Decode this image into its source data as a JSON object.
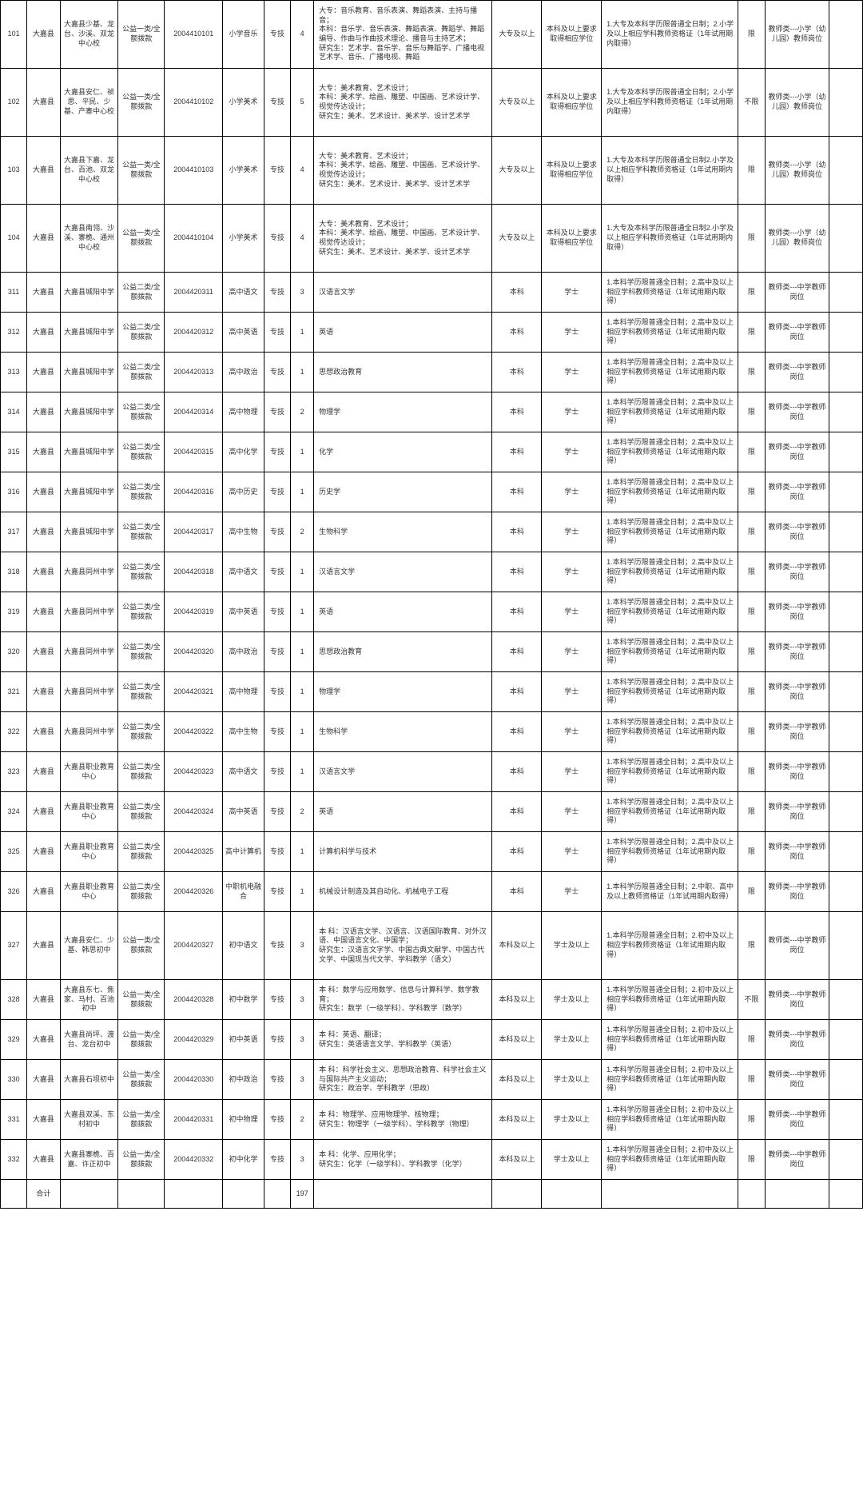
{
  "footer_label": "合计",
  "footer_total": "197",
  "rows": [
    {
      "h": "tall",
      "no": "101",
      "region": "大嘉县",
      "unit": "大嘉县少基、龙台、沙溪、双龙中心校",
      "type": "公益一类/全额拨款",
      "code": "2004410101",
      "post": "小学音乐",
      "ptype": "专技",
      "n": "4",
      "major": "大专：音乐教育、音乐表演、舞蹈表演、主持与播音；\n本科：音乐学、音乐表演、舞蹈表演、舞蹈学、舞蹈编导、作曲与作曲技术理论、播音与主持艺术；\n研究生：艺术学、音乐学、音乐与舞蹈学、广播电视艺术学、音乐、广播电视、舞蹈",
      "edu": "大专及以上",
      "deg": "本科及以上要求取得相应学位",
      "cond": "1.大专及本科学历限普通全日制；2.小学及以上相应学科教师资格证（1年试用期内取得）",
      "sex": "限",
      "cat": "教师类---小学（幼儿园）教师岗位",
      "note": ""
    },
    {
      "h": "tall",
      "no": "102",
      "region": "大嘉县",
      "unit": "大嘉县安仁、祯思、平民、少基、产寨中心校",
      "type": "公益一类/全额拨款",
      "code": "2004410102",
      "post": "小学美术",
      "ptype": "专技",
      "n": "5",
      "major": "大专：美术教育、艺术设计；\n本科：美术学、绘画、雕塑、中国画、艺术设计学、视觉传达设计；\n研究生：美术、艺术设计、美术学、设计艺术学",
      "edu": "大专及以上",
      "deg": "本科及以上要求取得相应学位",
      "cond": "1.大专及本科学历限普通全日制；2.小学及以上相应学科教师资格证（1年试用期内取得）",
      "sex": "不限",
      "cat": "教师类---小学（幼儿园）教师岗位",
      "note": ""
    },
    {
      "h": "tall",
      "no": "103",
      "region": "大嘉县",
      "unit": "大嘉县下嘉、龙台、百池、双龙中心校",
      "type": "公益一类/全额拨款",
      "code": "2004410103",
      "post": "小学美术",
      "ptype": "专技",
      "n": "4",
      "major": "大专：美术教育、艺术设计；\n本科：美术学、绘画、雕塑、中国画、艺术设计学、视觉传达设计；\n研究生：美术、艺术设计、美术学、设计艺术学",
      "edu": "大专及以上",
      "deg": "本科及以上要求取得相应学位",
      "cond": "1.大专及本科学历限普通全日制2.小学及以上相应学科教师资格证（1年试用期内取得）",
      "sex": "限",
      "cat": "教师类---小学（幼儿园）教师岗位",
      "note": ""
    },
    {
      "h": "tall",
      "no": "104",
      "region": "大嘉县",
      "unit": "大嘉县南翎、沙溪、寨桅、通州中心校",
      "type": "公益一类/全额拨款",
      "code": "2004410104",
      "post": "小学美术",
      "ptype": "专技",
      "n": "4",
      "major": "大专：美术教育、艺术设计；\n本科：美术学、绘画、雕塑、中国画、艺术设计学、视觉传达设计；\n研究生：美术、艺术设计、美术学、设计艺术学",
      "edu": "大专及以上",
      "deg": "本科及以上要求取得相应学位",
      "cond": "1.大专及本科学历限普通全日制2.小学及以上相应学科教师资格证（1年试用期内取得）",
      "sex": "限",
      "cat": "教师类---小学（幼儿园）教师岗位",
      "note": ""
    },
    {
      "h": "",
      "no": "311",
      "region": "大嘉县",
      "unit": "大嘉县城阳中学",
      "type": "公益二类/全额拨款",
      "code": "2004420311",
      "post": "高中语文",
      "ptype": "专技",
      "n": "3",
      "major": "汉语言文学",
      "edu": "本科",
      "deg": "学士",
      "cond": "1.本科学历限普通全日制；2.高中及以上相应学科教师资格证（1年试用期内取得）",
      "sex": "限",
      "cat": "教师类---中学教师岗位",
      "note": ""
    },
    {
      "h": "",
      "no": "312",
      "region": "大嘉县",
      "unit": "大嘉县城阳中学",
      "type": "公益二类/全额拨款",
      "code": "2004420312",
      "post": "高中英语",
      "ptype": "专技",
      "n": "1",
      "major": "英语",
      "edu": "本科",
      "deg": "学士",
      "cond": "1.本科学历限普通全日制；2.高中及以上相应学科教师资格证（1年试用期内取得）",
      "sex": "限",
      "cat": "教师类---中学教师岗位",
      "note": ""
    },
    {
      "h": "",
      "no": "313",
      "region": "大嘉县",
      "unit": "大嘉县城阳中学",
      "type": "公益二类/全额拨款",
      "code": "2004420313",
      "post": "高中政治",
      "ptype": "专技",
      "n": "1",
      "major": "思想政治教育",
      "edu": "本科",
      "deg": "学士",
      "cond": "1.本科学历限普通全日制；2.高中及以上相应学科教师资格证（1年试用期内取得）",
      "sex": "限",
      "cat": "教师类---中学教师岗位",
      "note": ""
    },
    {
      "h": "",
      "no": "314",
      "region": "大嘉县",
      "unit": "大嘉县城阳中学",
      "type": "公益二类/全额拨款",
      "code": "2004420314",
      "post": "高中物理",
      "ptype": "专技",
      "n": "2",
      "major": "物理学",
      "edu": "本科",
      "deg": "学士",
      "cond": "1.本科学历限普通全日制；2.高中及以上相应学科教师资格证（1年试用期内取得）",
      "sex": "限",
      "cat": "教师类---中学教师岗位",
      "note": ""
    },
    {
      "h": "",
      "no": "315",
      "region": "大嘉县",
      "unit": "大嘉县城阳中学",
      "type": "公益二类/全额拨款",
      "code": "2004420315",
      "post": "高中化学",
      "ptype": "专技",
      "n": "1",
      "major": "化学",
      "edu": "本科",
      "deg": "学士",
      "cond": "1.本科学历限普通全日制；2.高中及以上相应学科教师资格证（1年试用期内取得）",
      "sex": "限",
      "cat": "教师类---中学教师岗位",
      "note": ""
    },
    {
      "h": "",
      "no": "316",
      "region": "大嘉县",
      "unit": "大嘉县城阳中学",
      "type": "公益二类/全额拨款",
      "code": "2004420316",
      "post": "高中历史",
      "ptype": "专技",
      "n": "1",
      "major": "历史学",
      "edu": "本科",
      "deg": "学士",
      "cond": "1.本科学历限普通全日制；2.高中及以上相应学科教师资格证（1年试用期内取得）",
      "sex": "限",
      "cat": "教师类---中学教师岗位",
      "note": ""
    },
    {
      "h": "",
      "no": "317",
      "region": "大嘉县",
      "unit": "大嘉县城阳中学",
      "type": "公益二类/全额拨款",
      "code": "2004420317",
      "post": "高中生物",
      "ptype": "专技",
      "n": "2",
      "major": "生物科学",
      "edu": "本科",
      "deg": "学士",
      "cond": "1.本科学历限普通全日制；2.高中及以上相应学科教师资格证（1年试用期内取得）",
      "sex": "限",
      "cat": "教师类---中学教师岗位",
      "note": ""
    },
    {
      "h": "",
      "no": "318",
      "region": "大嘉县",
      "unit": "大嘉县同州中学",
      "type": "公益二类/全额拨款",
      "code": "2004420318",
      "post": "高中语文",
      "ptype": "专技",
      "n": "1",
      "major": "汉语言文学",
      "edu": "本科",
      "deg": "学士",
      "cond": "1.本科学历限普通全日制；2.高中及以上相应学科教师资格证（1年试用期内取得）",
      "sex": "限",
      "cat": "教师类---中学教师岗位",
      "note": ""
    },
    {
      "h": "",
      "no": "319",
      "region": "大嘉县",
      "unit": "大嘉县同州中学",
      "type": "公益二类/全额拨款",
      "code": "2004420319",
      "post": "高中英语",
      "ptype": "专技",
      "n": "1",
      "major": "英语",
      "edu": "本科",
      "deg": "学士",
      "cond": "1.本科学历限普通全日制；2.高中及以上相应学科教师资格证（1年试用期内取得）",
      "sex": "限",
      "cat": "教师类---中学教师岗位",
      "note": ""
    },
    {
      "h": "",
      "no": "320",
      "region": "大嘉县",
      "unit": "大嘉县同州中学",
      "type": "公益二类/全额拨款",
      "code": "2004420320",
      "post": "高中政治",
      "ptype": "专技",
      "n": "1",
      "major": "思想政治教育",
      "edu": "本科",
      "deg": "学士",
      "cond": "1.本科学历限普通全日制；2.高中及以上相应学科教师资格证（1年试用期内取得）",
      "sex": "限",
      "cat": "教师类---中学教师岗位",
      "note": ""
    },
    {
      "h": "",
      "no": "321",
      "region": "大嘉县",
      "unit": "大嘉县同州中学",
      "type": "公益二类/全额拨款",
      "code": "2004420321",
      "post": "高中物理",
      "ptype": "专技",
      "n": "1",
      "major": "物理学",
      "edu": "本科",
      "deg": "学士",
      "cond": "1.本科学历限普通全日制；2.高中及以上相应学科教师资格证（1年试用期内取得）",
      "sex": "限",
      "cat": "教师类---中学教师岗位",
      "note": ""
    },
    {
      "h": "",
      "no": "322",
      "region": "大嘉县",
      "unit": "大嘉县同州中学",
      "type": "公益二类/全额拨款",
      "code": "2004420322",
      "post": "高中生物",
      "ptype": "专技",
      "n": "1",
      "major": "生物科学",
      "edu": "本科",
      "deg": "学士",
      "cond": "1.本科学历限普通全日制；2.高中及以上相应学科教师资格证（1年试用期内取得）",
      "sex": "限",
      "cat": "教师类---中学教师岗位",
      "note": ""
    },
    {
      "h": "",
      "no": "323",
      "region": "大嘉县",
      "unit": "大嘉县职业教育中心",
      "type": "公益二类/全额拨款",
      "code": "2004420323",
      "post": "高中语文",
      "ptype": "专技",
      "n": "1",
      "major": "汉语言文学",
      "edu": "本科",
      "deg": "学士",
      "cond": "1.本科学历限普通全日制；2.高中及以上相应学科教师资格证（1年试用期内取得）",
      "sex": "限",
      "cat": "教师类---中学教师岗位",
      "note": ""
    },
    {
      "h": "",
      "no": "324",
      "region": "大嘉县",
      "unit": "大嘉县职业教育中心",
      "type": "公益二类/全额拨款",
      "code": "2004420324",
      "post": "高中英语",
      "ptype": "专技",
      "n": "2",
      "major": "英语",
      "edu": "本科",
      "deg": "学士",
      "cond": "1.本科学历限普通全日制；2.高中及以上相应学科教师资格证（1年试用期内取得）",
      "sex": "限",
      "cat": "教师类---中学教师岗位",
      "note": ""
    },
    {
      "h": "",
      "no": "325",
      "region": "大嘉县",
      "unit": "大嘉县职业教育中心",
      "type": "公益二类/全额拨款",
      "code": "2004420325",
      "post": "高中计算机",
      "ptype": "专技",
      "n": "1",
      "major": "计算机科学与技术",
      "edu": "本科",
      "deg": "学士",
      "cond": "1.本科学历限普通全日制；2.高中及以上相应学科教师资格证（1年试用期内取得）",
      "sex": "限",
      "cat": "教师类---中学教师岗位",
      "note": ""
    },
    {
      "h": "",
      "no": "326",
      "region": "大嘉县",
      "unit": "大嘉县职业教育中心",
      "type": "公益二类/全额拨款",
      "code": "2004420326",
      "post": "中职机电融合",
      "ptype": "专技",
      "n": "1",
      "major": "机械设计制造及其自动化、机械电子工程",
      "edu": "本科",
      "deg": "学士",
      "cond": "1.本科学历限普通全日制；2.中职、高中及以上教师资格证（1年试用期内取得）",
      "sex": "限",
      "cat": "教师类---中学教师岗位",
      "note": ""
    },
    {
      "h": "tall",
      "no": "327",
      "region": "大嘉县",
      "unit": "大嘉县安仁、少基、韩思初中",
      "type": "公益一类/全额拨款",
      "code": "2004420327",
      "post": "初中语文",
      "ptype": "专技",
      "n": "3",
      "major": "本 科：汉语言文学、汉语言、汉语国际教育、对外汉语、中国语言文化、中国学；\n研究生：汉语言文字学、中国古典文献学、中国古代文学、中国现当代文学、学科教学（语文）",
      "edu": "本科及以上",
      "deg": "学士及以上",
      "cond": "1.本科学历限普通全日制；2.初中及以上相应学科教师资格证（1年试用期内取得）",
      "sex": "限",
      "cat": "教师类---中学教师岗位",
      "note": ""
    },
    {
      "h": "",
      "no": "328",
      "region": "大嘉县",
      "unit": "大嘉县东七、焦家、马村、百池初中",
      "type": "公益一类/全额拨款",
      "code": "2004420328",
      "post": "初中数学",
      "ptype": "专技",
      "n": "3",
      "major": "本 科：数学与应用数学、信息与计算科学、数学教育；\n研究生：数学（一级学科）、学科教学（数学）",
      "edu": "本科及以上",
      "deg": "学士及以上",
      "cond": "1.本科学历限普通全日制；2.初中及以上相应学科教师资格证（1年试用期内取得）",
      "sex": "不限",
      "cat": "教师类---中学教师岗位",
      "note": ""
    },
    {
      "h": "",
      "no": "329",
      "region": "大嘉县",
      "unit": "大嘉县尚坪、渡台、龙台初中",
      "type": "公益一类/全额拨款",
      "code": "2004420329",
      "post": "初中英语",
      "ptype": "专技",
      "n": "3",
      "major": "本 科：英语、翻译；\n研究生：英语语言文学、学科教学（英语）",
      "edu": "本科及以上",
      "deg": "学士及以上",
      "cond": "1.本科学历限普通全日制；2.初中及以上相应学科教师资格证（1年试用期内取得）",
      "sex": "限",
      "cat": "教师类---中学教师岗位",
      "note": ""
    },
    {
      "h": "",
      "no": "330",
      "region": "大嘉县",
      "unit": "大嘉县石坝初中",
      "type": "公益一类/全额拨款",
      "code": "2004420330",
      "post": "初中政治",
      "ptype": "专技",
      "n": "3",
      "major": "本 科：科学社会主义、思想政治教育、科学社会主义与国际共产主义运动；\n研究生：政治学、学科教学（思政）",
      "edu": "本科及以上",
      "deg": "学士及以上",
      "cond": "1.本科学历限普通全日制；2.初中及以上相应学科教师资格证（1年试用期内取得）",
      "sex": "限",
      "cat": "教师类---中学教师岗位",
      "note": ""
    },
    {
      "h": "",
      "no": "331",
      "region": "大嘉县",
      "unit": "大嘉县双溪、东村初中",
      "type": "公益一类/全额拨款",
      "code": "2004420331",
      "post": "初中物理",
      "ptype": "专技",
      "n": "2",
      "major": "本 科：物理学、应用物理学、核物理；\n研究生：物理学（一级学科）、学科教学（物理）",
      "edu": "本科及以上",
      "deg": "学士及以上",
      "cond": "1.本科学历限普通全日制；2.初中及以上相应学科教师资格证（1年试用期内取得）",
      "sex": "限",
      "cat": "教师类---中学教师岗位",
      "note": ""
    },
    {
      "h": "",
      "no": "332",
      "region": "大嘉县",
      "unit": "大嘉县寨桅、百嘉、许正初中",
      "type": "公益一类/全额拨款",
      "code": "2004420332",
      "post": "初中化学",
      "ptype": "专技",
      "n": "3",
      "major": "本 科：化学、应用化学；\n研究生：化学（一级学科）、学科教学（化学）",
      "edu": "本科及以上",
      "deg": "学士及以上",
      "cond": "1.本科学历限普通全日制；2.初中及以上相应学科教师资格证（1年试用期内取得）",
      "sex": "限",
      "cat": "教师类---中学教师岗位",
      "note": ""
    }
  ]
}
